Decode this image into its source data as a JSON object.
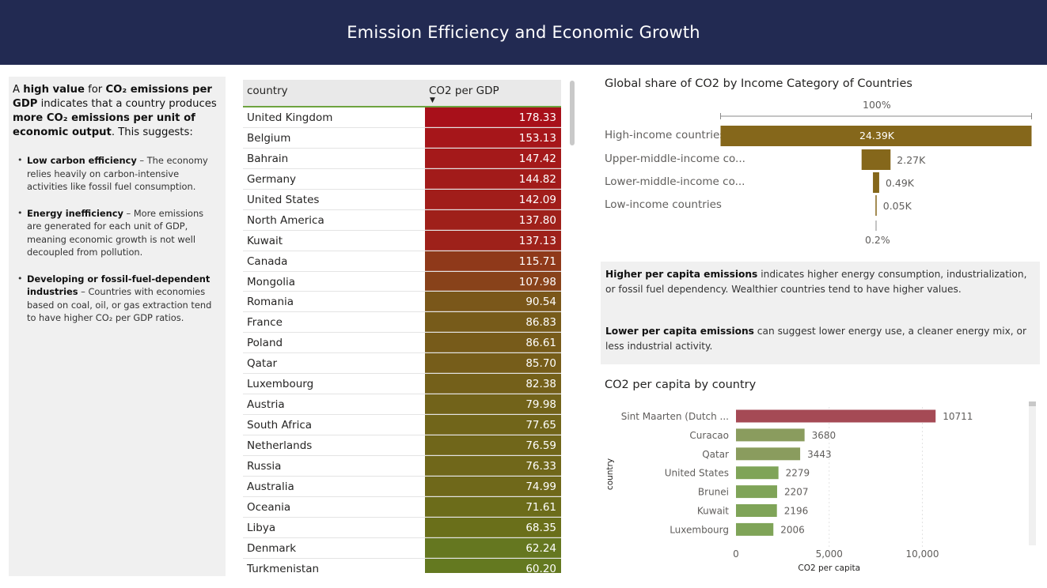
{
  "header": {
    "title": "Emission Efficiency and Economic Growth"
  },
  "info_panel": {
    "lead_a": "A ",
    "lead_b": "high value",
    "lead_c": " for ",
    "lead_d": "CO₂ emissions per GDP",
    "lead_e": " indicates that a country produces ",
    "lead_f": "more CO₂ emissions per unit of economic output",
    "lead_g": ". This suggests:",
    "bullets": [
      {
        "title": "Low carbon efficiency",
        "text": " – The economy relies heavily on carbon-intensive activities like fossil fuel consumption."
      },
      {
        "title": " Energy inefficiency",
        "text": " – More emissions are generated for each unit of GDP, meaning economic growth is not well decoupled from pollution."
      },
      {
        "title": " Developing or fossil-fuel-dependent industries",
        "text": " – Countries with economies based on coal, oil, or gas extraction tend to have higher CO₂ per GDP ratios."
      }
    ]
  },
  "table": {
    "col_country": "country",
    "col_value": "CO2 per GDP",
    "sort_indicator": "▼",
    "rows": [
      {
        "country": "United Kingdom",
        "value": "178.33",
        "color": "#a8101a"
      },
      {
        "country": "Belgium",
        "value": "153.13",
        "color": "#a6161a"
      },
      {
        "country": "Bahrain",
        "value": "147.42",
        "color": "#a4191a"
      },
      {
        "country": "Germany",
        "value": "144.82",
        "color": "#a21b1a"
      },
      {
        "country": "United States",
        "value": "142.09",
        "color": "#a11d1a"
      },
      {
        "country": "North America",
        "value": "137.80",
        "color": "#9f201a"
      },
      {
        "country": "Kuwait",
        "value": "137.13",
        "color": "#9e211a"
      },
      {
        "country": "Canada",
        "value": "115.71",
        "color": "#8f391a"
      },
      {
        "country": "Mongolia",
        "value": "107.98",
        "color": "#88421a"
      },
      {
        "country": "Romania",
        "value": "90.54",
        "color": "#7a571a"
      },
      {
        "country": "France",
        "value": "86.83",
        "color": "#775b1a"
      },
      {
        "country": "Poland",
        "value": "86.61",
        "color": "#775b1a"
      },
      {
        "country": "Qatar",
        "value": "85.70",
        "color": "#765d1a"
      },
      {
        "country": "Luxembourg",
        "value": "82.38",
        "color": "#74601a"
      },
      {
        "country": "Austria",
        "value": "79.98",
        "color": "#72631a"
      },
      {
        "country": "South Africa",
        "value": "77.65",
        "color": "#71651a"
      },
      {
        "country": "Netherlands",
        "value": "76.59",
        "color": "#70661a"
      },
      {
        "country": "Russia",
        "value": "76.33",
        "color": "#70671a"
      },
      {
        "country": "Australia",
        "value": "74.99",
        "color": "#6f681a"
      },
      {
        "country": "Oceania",
        "value": "71.61",
        "color": "#6c6c1a"
      },
      {
        "country": "Libya",
        "value": "68.35",
        "color": "#6a6f1a"
      },
      {
        "country": "Denmark",
        "value": "62.24",
        "color": "#657720"
      },
      {
        "country": "Turkmenistan",
        "value": "60.20",
        "color": "#647920"
      }
    ]
  },
  "funnel": {
    "title": "Global share of CO2 by Income Category of Countries",
    "top_pct": "100%",
    "bottom_pct": "0.2%",
    "bar_color": "#85671b",
    "chart_data": {
      "type": "bar",
      "categories": [
        "High-income countries",
        "Upper-middle-income co...",
        "Lower-middle-income co...",
        "Low-income countries"
      ],
      "values": [
        24390,
        2270,
        490,
        50
      ],
      "labels": [
        "24.39K",
        "2.27K",
        "0.49K",
        "0.05K"
      ]
    }
  },
  "note": {
    "p1_bold": "Higher per capita emissions",
    "p1_text": " indicates higher energy consumption, industrialization, or fossil fuel dependency. Wealthier countries tend to have higher values.",
    "p2_bold": "Lower per capita emissions",
    "p2_text": " can suggest lower energy use, a cleaner energy mix, or less industrial activity."
  },
  "bar_chart": {
    "title": "CO2 per capita by country",
    "chart_data": {
      "type": "bar",
      "orientation": "horizontal",
      "categories": [
        "Sint Maarten (Dutch ...",
        "Curacao",
        "Qatar",
        "United States",
        "Brunei",
        "Kuwait",
        "Luxembourg"
      ],
      "values": [
        10711,
        3680,
        3443,
        2279,
        2207,
        2196,
        2006
      ],
      "colors": [
        "#a54a55",
        "#8a9c5e",
        "#8a9c5e",
        "#7fa458",
        "#7fa458",
        "#7fa458",
        "#7fa458"
      ],
      "xlabel": "CO2 per capita",
      "ylabel": "country",
      "xlim": [
        0,
        12000
      ],
      "xticks": [
        0,
        5000,
        10000
      ],
      "xtick_labels": [
        "0",
        "5,000",
        "10,000"
      ],
      "grid": true
    }
  }
}
